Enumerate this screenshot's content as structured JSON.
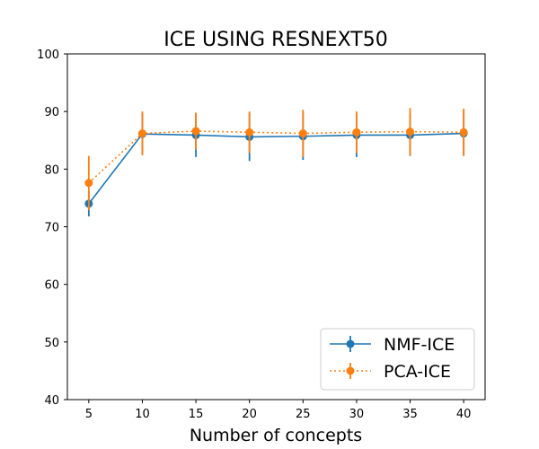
{
  "chart_data": {
    "type": "line",
    "title": "ICE USING RESNEXT50",
    "xlabel": "Number of concepts",
    "ylabel": "",
    "x": [
      5,
      10,
      15,
      20,
      25,
      30,
      35,
      40
    ],
    "xlim": [
      3,
      42
    ],
    "ylim": [
      40,
      100
    ],
    "xticks": [
      5,
      10,
      15,
      20,
      25,
      30,
      35,
      40
    ],
    "yticks": [
      40,
      50,
      60,
      70,
      80,
      90,
      100
    ],
    "grid": false,
    "legend_position": "lower-right",
    "series": [
      {
        "name": "NMF-ICE",
        "color": "#1f77b4",
        "linestyle": "solid",
        "marker": "circle",
        "values": [
          74.0,
          86.1,
          85.9,
          85.6,
          85.7,
          85.9,
          85.9,
          86.2
        ],
        "error": [
          2.2,
          3.6,
          3.8,
          4.2,
          4.1,
          3.8,
          3.6,
          3.9
        ]
      },
      {
        "name": "PCA-ICE",
        "color": "#ff7f0e",
        "linestyle": "dotted",
        "marker": "circle",
        "values": [
          77.6,
          86.2,
          86.6,
          86.4,
          86.2,
          86.4,
          86.5,
          86.4
        ],
        "error": [
          4.7,
          3.8,
          3.2,
          3.6,
          4.1,
          3.6,
          4.1,
          4.1
        ]
      }
    ]
  }
}
